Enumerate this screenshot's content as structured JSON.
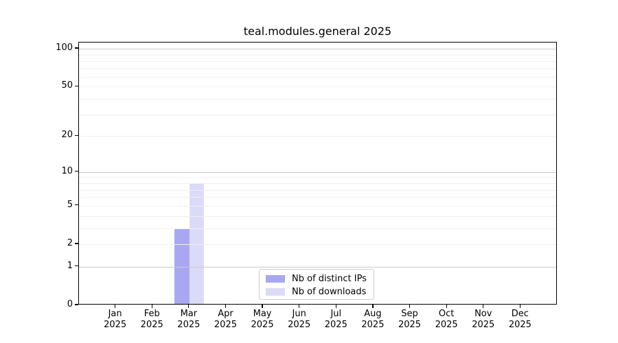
{
  "chart_data": {
    "type": "bar",
    "title": "teal.modules.general 2025",
    "categories": [
      "Jan 2025",
      "Feb 2025",
      "Mar 2025",
      "Apr 2025",
      "May 2025",
      "Jun 2025",
      "Jul 2025",
      "Aug 2025",
      "Sep 2025",
      "Oct 2025",
      "Nov 2025",
      "Dec 2025"
    ],
    "series": [
      {
        "name": "Nb of distinct IPs",
        "color": "#a8a8f2",
        "values": [
          0,
          0,
          3,
          0,
          0,
          0,
          0,
          0,
          0,
          0,
          0,
          0
        ]
      },
      {
        "name": "Nb of downloads",
        "color": "#dbdbf8",
        "values": [
          0,
          0,
          8,
          0,
          0,
          0,
          0,
          0,
          0,
          0,
          0,
          0
        ]
      }
    ],
    "xlabel": "",
    "ylabel": "",
    "yscale": "log10(value+1)",
    "ytick_labels": [
      100,
      50,
      20,
      10,
      5,
      2,
      1,
      0
    ],
    "major_gridlines": [
      1,
      10,
      100
    ],
    "minor_gridlines": [
      2,
      3,
      4,
      5,
      6,
      7,
      8,
      9,
      20,
      30,
      40,
      50,
      60,
      70,
      80,
      90
    ],
    "ylim": [
      0,
      112
    ],
    "bar_width": 21.5,
    "grid": true,
    "legend_position": "bottom-center"
  }
}
